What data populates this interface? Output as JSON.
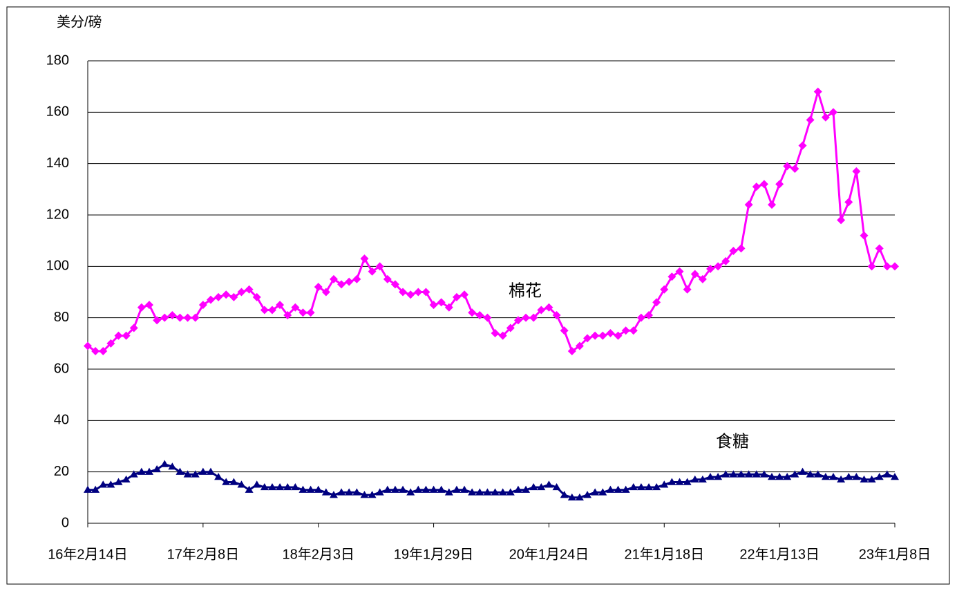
{
  "chart_data": {
    "type": "line",
    "y_label": "美分/磅",
    "categories": [
      "16年2月14日",
      null,
      null,
      null,
      null,
      null,
      null,
      null,
      null,
      null,
      null,
      null,
      null,
      null,
      null,
      "17年2月8日",
      null,
      null,
      null,
      null,
      null,
      null,
      null,
      null,
      null,
      null,
      null,
      null,
      null,
      null,
      "18年2月3日",
      null,
      null,
      null,
      null,
      null,
      null,
      null,
      null,
      null,
      null,
      null,
      null,
      null,
      null,
      "19年1月29日",
      null,
      null,
      null,
      null,
      null,
      null,
      null,
      null,
      null,
      null,
      null,
      null,
      null,
      null,
      "20年1月24日",
      null,
      null,
      null,
      null,
      null,
      null,
      null,
      null,
      null,
      null,
      null,
      null,
      null,
      null,
      "21年1月18日",
      null,
      null,
      null,
      null,
      null,
      null,
      null,
      null,
      null,
      null,
      null,
      null,
      null,
      null,
      "22年1月13日",
      null,
      null,
      null,
      null,
      null,
      null,
      null,
      null,
      null,
      null,
      null,
      null,
      null,
      null,
      "23年1月8日"
    ],
    "series": [
      {
        "name": "棉花",
        "color": "#ff00ff",
        "marker": "diamond",
        "values": [
          69,
          67,
          67,
          70,
          73,
          73,
          76,
          84,
          85,
          79,
          80,
          81,
          80,
          80,
          80,
          85,
          87,
          88,
          89,
          88,
          90,
          91,
          88,
          83,
          83,
          85,
          81,
          84,
          82,
          82,
          92,
          90,
          95,
          93,
          94,
          95,
          103,
          98,
          100,
          95,
          93,
          90,
          89,
          90,
          90,
          85,
          86,
          84,
          88,
          89,
          82,
          81,
          80,
          74,
          73,
          76,
          79,
          80,
          80,
          83,
          84,
          81,
          75,
          67,
          69,
          72,
          73,
          73,
          74,
          73,
          75,
          75,
          80,
          81,
          86,
          91,
          96,
          98,
          91,
          97,
          95,
          99,
          100,
          102,
          106,
          107,
          124,
          131,
          132,
          124,
          132,
          139,
          138,
          147,
          157,
          168,
          158,
          160,
          118,
          125,
          137,
          112,
          100,
          107,
          100,
          100
        ]
      },
      {
        "name": "食糖",
        "color": "#000080",
        "marker": "triangle",
        "values": [
          13,
          13,
          15,
          15,
          16,
          17,
          19,
          20,
          20,
          21,
          23,
          22,
          20,
          19,
          19,
          20,
          20,
          18,
          16,
          16,
          15,
          13,
          15,
          14,
          14,
          14,
          14,
          14,
          13,
          13,
          13,
          12,
          11,
          12,
          12,
          12,
          11,
          11,
          12,
          13,
          13,
          13,
          12,
          13,
          13,
          13,
          13,
          12,
          13,
          13,
          12,
          12,
          12,
          12,
          12,
          12,
          13,
          13,
          14,
          14,
          15,
          14,
          11,
          10,
          10,
          11,
          12,
          12,
          13,
          13,
          13,
          14,
          14,
          14,
          14,
          15,
          16,
          16,
          16,
          17,
          17,
          18,
          18,
          19,
          19,
          19,
          19,
          19,
          19,
          18,
          18,
          18,
          19,
          20,
          19,
          19,
          18,
          18,
          17,
          18,
          18,
          17,
          17,
          18,
          19,
          18
        ]
      }
    ],
    "ylim": [
      0,
      180
    ],
    "yticks": [
      0,
      20,
      40,
      60,
      80,
      100,
      120,
      140,
      160,
      180
    ],
    "grid": true
  }
}
